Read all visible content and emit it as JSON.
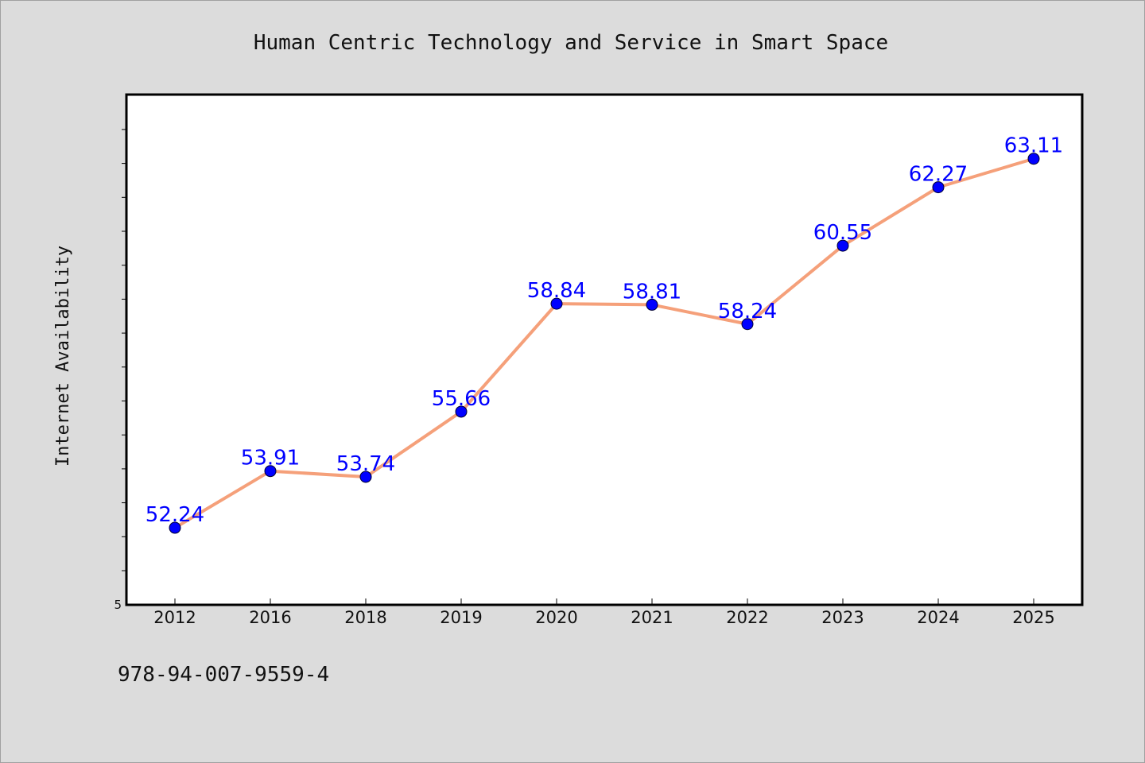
{
  "isbn": "978-94-007-9559-4",
  "chart_data": {
    "type": "line",
    "title": "Human Centric Technology and Service in Smart Space",
    "xlabel": "",
    "ylabel": "Internet Availability",
    "categories": [
      "2012",
      "2016",
      "2018",
      "2019",
      "2020",
      "2021",
      "2022",
      "2023",
      "2024",
      "2025"
    ],
    "series": [
      {
        "values": [
          52.24,
          53.91,
          53.74,
          55.66,
          58.84,
          58.81,
          58.24,
          60.55,
          62.27,
          63.11
        ],
        "labels": [
          "52.24",
          "53.91",
          "53.74",
          "55.66",
          "58.84",
          "58.81",
          "58.24",
          "60.55",
          "62.27",
          "63.11"
        ],
        "line_color": "#f5a07a",
        "marker_color": "#0000ff",
        "label_color": "#0000ff"
      }
    ],
    "ylim": [
      49.97,
      65.0
    ],
    "y_ticks": [
      "5"
    ],
    "grid": false,
    "legend": "none"
  }
}
